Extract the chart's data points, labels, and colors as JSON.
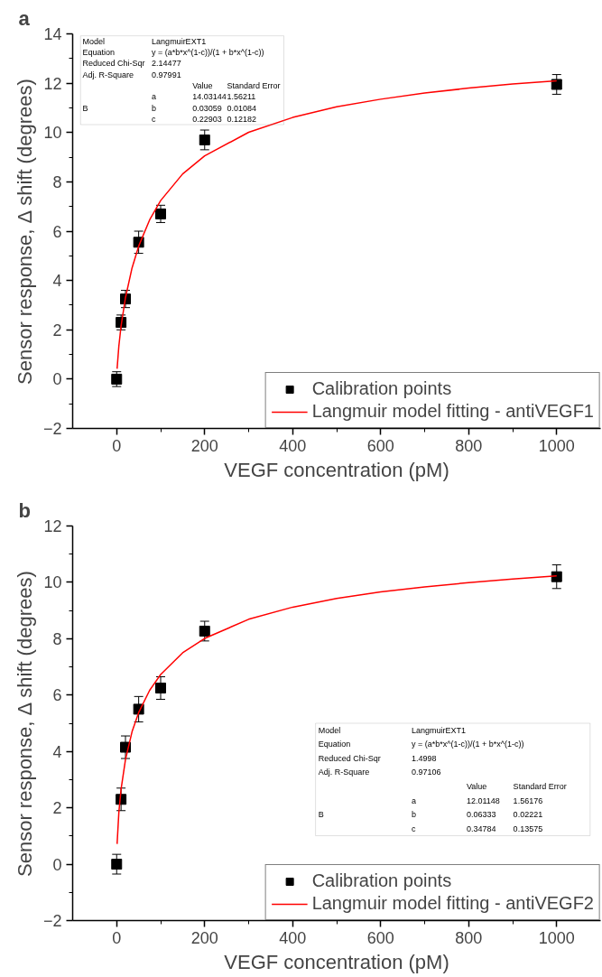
{
  "chart_data": [
    {
      "type": "scatter",
      "title": "a",
      "xlabel": "VEGF concentration (pM)",
      "ylabel": "Sensor response, Δ shift (degrees)",
      "x": [
        0,
        10,
        20,
        50,
        100,
        200,
        1000
      ],
      "xlim": [
        -100,
        1100
      ],
      "xticks": [
        0,
        200,
        400,
        600,
        800,
        1000
      ],
      "ylim": [
        -2,
        14
      ],
      "yticks": [
        -2,
        0,
        2,
        4,
        6,
        8,
        10,
        12,
        14
      ],
      "grid": false,
      "legend": "bottom right",
      "series": [
        {
          "name": "Calibration points",
          "marker": "square",
          "color": "#000000",
          "values": [
            0,
            2.3,
            3.25,
            5.55,
            6.7,
            9.7,
            11.95
          ],
          "errors": [
            0.3,
            0.3,
            0.35,
            0.45,
            0.35,
            0.4,
            0.4
          ]
        },
        {
          "name": "Langmuir model fitting - antiVEGF1",
          "type": "line",
          "color": "#ff0000",
          "line_style": "solid",
          "x": [
            1,
            5,
            10,
            20,
            35,
            50,
            75,
            100,
            150,
            200,
            300,
            400,
            500,
            600,
            700,
            800,
            900,
            1000
          ],
          "values": [
            0.42,
            1.34,
            2.15,
            3.3,
            4.51,
            5.39,
            6.46,
            7.24,
            8.32,
            9.05,
            10.01,
            10.61,
            11.04,
            11.35,
            11.6,
            11.8,
            11.97,
            12.1
          ]
        }
      ],
      "annotations": [
        "Model",
        "LangmuirEXT1",
        "Equation",
        "y = (a*b*x^(1-c))/(1 + b*x^(1-c))",
        "Reduced Chi-Sqr",
        "2.14477",
        "Adj. R-Square",
        "0.97991",
        "Value",
        "Standard Error",
        "B",
        "a",
        "14.03144",
        "1.56211",
        "b",
        "0.03059",
        "0.01084",
        "c",
        "0.22903",
        "0.12182"
      ]
    },
    {
      "type": "scatter",
      "title": "b",
      "xlabel": "VEGF concentration (pM)",
      "ylabel": "Sensor response, Δ shift (degrees)",
      "x": [
        0,
        10,
        20,
        50,
        100,
        200,
        1000
      ],
      "xlim": [
        -100,
        1100
      ],
      "xticks": [
        0,
        200,
        400,
        600,
        800,
        1000
      ],
      "ylim": [
        -2,
        12
      ],
      "yticks": [
        -2,
        0,
        2,
        4,
        6,
        8,
        10,
        12
      ],
      "grid": false,
      "legend": "bottom right",
      "series": [
        {
          "name": "Calibration points",
          "marker": "square",
          "color": "#000000",
          "values": [
            0,
            2.3,
            4.15,
            5.5,
            6.25,
            8.27,
            10.2
          ],
          "errors": [
            0.35,
            0.4,
            0.4,
            0.45,
            0.4,
            0.35,
            0.42
          ]
        },
        {
          "name": "Langmuir model fitting - antiVEGF2",
          "type": "line",
          "color": "#ff0000",
          "line_style": "solid",
          "x": [
            1,
            5,
            10,
            20,
            35,
            50,
            75,
            100,
            150,
            200,
            300,
            400,
            500,
            600,
            700,
            800,
            900,
            1000
          ],
          "values": [
            0.72,
            1.84,
            2.66,
            3.71,
            4.7,
            5.38,
            6.17,
            6.73,
            7.5,
            8.01,
            8.69,
            9.12,
            9.43,
            9.66,
            9.84,
            9.99,
            10.12,
            10.23
          ]
        }
      ],
      "annotations": [
        "Model",
        "LangmuirEXT1",
        "Equation",
        "y = (a*b*x^(1-c))/(1 + b*x^(1-c))",
        "Reduced Chi-Sqr",
        "1.4998",
        "Adj. R-Square",
        "0.97106",
        "Value",
        "Standard Error",
        "B",
        "a",
        "12.01148",
        "1.56176",
        "b",
        "0.06333",
        "0.02221",
        "c",
        "0.34784",
        "0.13575"
      ]
    }
  ]
}
